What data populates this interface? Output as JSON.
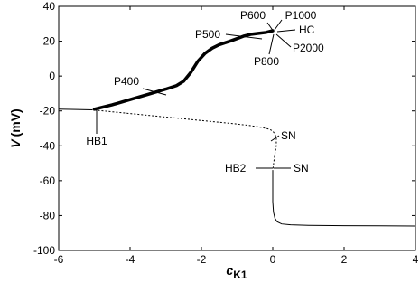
{
  "chart_data": {
    "type": "line",
    "xlabel": "c",
    "xlabel_sub": "K1",
    "ylabel": "V",
    "ylabel_units": "(mV)",
    "xlim": [
      -6,
      4
    ],
    "ylim": [
      -100,
      40
    ],
    "xticks": [
      -6,
      -4,
      -2,
      0,
      2,
      4
    ],
    "xtick_labels": [
      "-6",
      "-4",
      "-2",
      "0",
      "2",
      "4"
    ],
    "yticks": [
      -100,
      -80,
      -60,
      -40,
      -20,
      0,
      20,
      40
    ],
    "ytick_labels": [
      "-100",
      "-80",
      "-60",
      "-40",
      "-20",
      "0",
      "20",
      "40"
    ],
    "grid": false,
    "legend": "none",
    "series": [
      {
        "style": "solid-thin",
        "x": [
          -6,
          -5.5,
          -5.05
        ],
        "y": [
          -19,
          -19.2,
          -19.4
        ]
      },
      {
        "style": "solid-thick",
        "x": [
          -5.0,
          -4.5,
          -4.0,
          -3.5,
          -3.0,
          -2.7,
          -2.5,
          -2.3,
          -2.1,
          -1.9,
          -1.7,
          -1.5,
          -1.2,
          -1.0,
          -0.8,
          -0.6,
          -0.4,
          -0.2,
          -0.1,
          0.0
        ],
        "y": [
          -19,
          -16.5,
          -13.5,
          -10.5,
          -7.5,
          -5.5,
          -3,
          2,
          8.5,
          13,
          16,
          18,
          20,
          21.5,
          23,
          24,
          24.5,
          25,
          25.5,
          26
        ]
      },
      {
        "style": "dotted",
        "x": [
          -5.0,
          -4.5,
          -4.0,
          -3.5,
          -3.0,
          -2.5,
          -2.0,
          -1.5,
          -1.0,
          -0.6,
          -0.3,
          -0.1,
          0.0,
          0.05,
          0.1,
          0.1,
          0.05,
          0.0
        ],
        "y": [
          -19.5,
          -20.5,
          -21.5,
          -22.5,
          -23.5,
          -24.5,
          -25.5,
          -26.5,
          -27.5,
          -28.5,
          -29.5,
          -30.5,
          -31.5,
          -33,
          -35,
          -40,
          -46,
          -54
        ]
      },
      {
        "style": "solid-thin",
        "x": [
          0.0,
          0.0,
          0.02,
          0.06,
          0.12,
          0.25,
          0.5,
          1.0,
          2.0,
          3.0,
          4.0
        ],
        "y": [
          -54,
          -72,
          -78,
          -81.5,
          -83.5,
          -84.8,
          -85.3,
          -85.6,
          -85.8,
          -85.9,
          -86
        ]
      }
    ],
    "annotations": [
      {
        "text": "HB1",
        "x": -5.0,
        "y": -19
      },
      {
        "text": "P400",
        "x": -3.9,
        "y": -13
      },
      {
        "text": "P500",
        "x": -0.9,
        "y": 24
      },
      {
        "text": "P600",
        "x": -0.05,
        "y": 26
      },
      {
        "text": "P1000",
        "x": 0.0,
        "y": 26
      },
      {
        "text": "HC",
        "x": 0.05,
        "y": 26
      },
      {
        "text": "P800",
        "x": -0.05,
        "y": 25
      },
      {
        "text": "P2000",
        "x": 0.05,
        "y": 25.5
      },
      {
        "text": "SN",
        "x": -0.1,
        "y": -31
      },
      {
        "text": "HB2",
        "x": 0.0,
        "y": -54
      },
      {
        "text": "SN",
        "x": 0.0,
        "y": -54
      }
    ]
  }
}
